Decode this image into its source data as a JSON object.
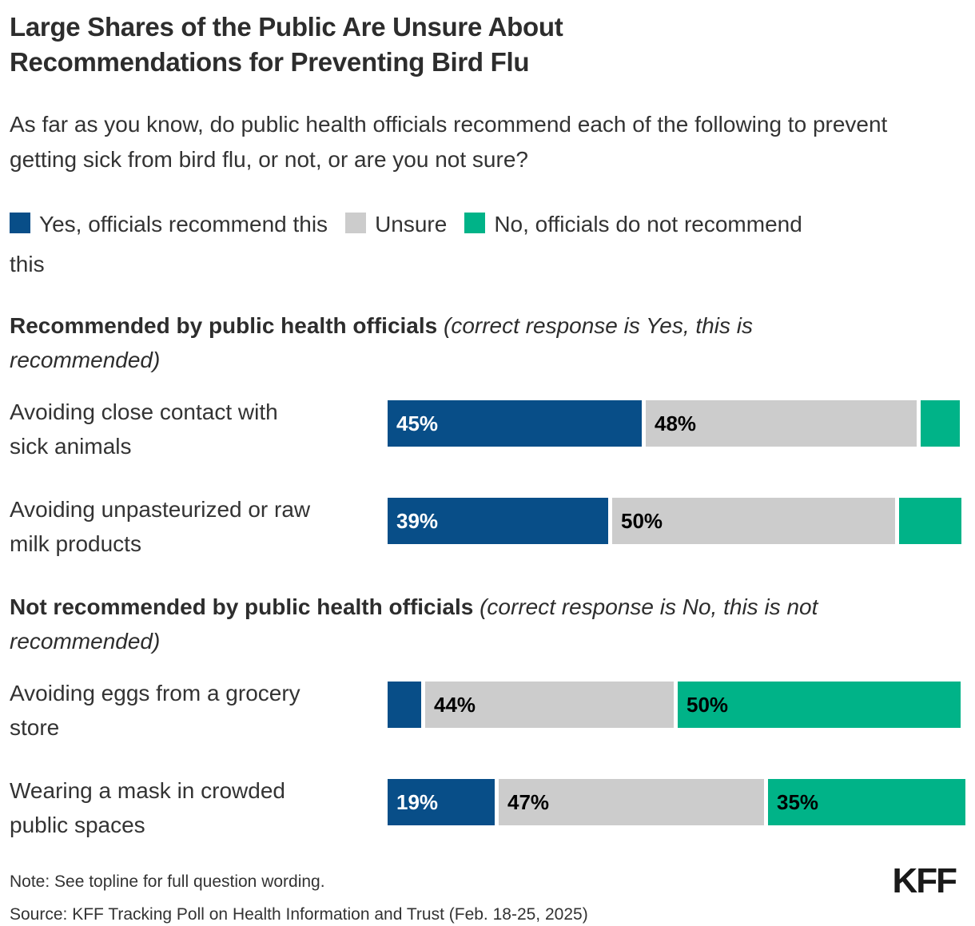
{
  "title": "Large Shares of the Public Are Unsure About Recommendations for Preventing Bird Flu",
  "subtitle": "As far as you know, do public health officials recommend each of the following to prevent getting sick from bird flu, or not, or are you not sure?",
  "colors": {
    "yes": "#084E88",
    "unsure": "#CCCCCC",
    "no": "#00B388",
    "text": "#333333",
    "label_on_dark": "#FFFFFF",
    "label_on_light": "#000000"
  },
  "legend": {
    "items": [
      {
        "key": "yes",
        "label": "Yes, officials recommend this",
        "color": "#084E88",
        "wrap_last_word": false
      },
      {
        "key": "unsure",
        "label": "Unsure",
        "color": "#CCCCCC",
        "wrap_last_word": false
      },
      {
        "key": "no",
        "label": "No, officials do not recommend this",
        "color": "#00B388",
        "wrap_last_word": true
      }
    ]
  },
  "sections": [
    {
      "heading_bold": "Recommended by public health officials ",
      "heading_italic": "(correct response is Yes, this is recommended)",
      "rows": [
        {
          "label": "Avoiding close contact with sick animals",
          "segments": [
            {
              "key": "yes",
              "value": 45,
              "display_label": "45%",
              "show_label": true
            },
            {
              "key": "unsure",
              "value": 48,
              "display_label": "48%",
              "show_label": true
            },
            {
              "key": "no",
              "value": 7,
              "display_label": "",
              "show_label": false
            }
          ]
        },
        {
          "label": "Avoiding unpasteurized or raw milk products",
          "segments": [
            {
              "key": "yes",
              "value": 39,
              "display_label": "39%",
              "show_label": true
            },
            {
              "key": "unsure",
              "value": 50,
              "display_label": "50%",
              "show_label": true
            },
            {
              "key": "no",
              "value": 11,
              "display_label": "",
              "show_label": false
            }
          ]
        }
      ]
    },
    {
      "heading_bold": "Not recommended by public health officials ",
      "heading_italic": "(correct response is No, this is not recommended)",
      "rows": [
        {
          "label": "Avoiding eggs from a grocery store",
          "segments": [
            {
              "key": "yes",
              "value": 6,
              "display_label": "",
              "show_label": false
            },
            {
              "key": "unsure",
              "value": 44,
              "display_label": "44%",
              "show_label": true
            },
            {
              "key": "no",
              "value": 50,
              "display_label": "50%",
              "show_label": true
            }
          ]
        },
        {
          "label": "Wearing a mask in crowded public spaces",
          "segments": [
            {
              "key": "yes",
              "value": 19,
              "display_label": "19%",
              "show_label": true
            },
            {
              "key": "unsure",
              "value": 47,
              "display_label": "47%",
              "show_label": true
            },
            {
              "key": "no",
              "value": 35,
              "display_label": "35%",
              "show_label": true
            }
          ]
        }
      ]
    }
  ],
  "footer": {
    "note": "Note: See topline for full question wording.",
    "source": "Source: KFF Tracking Poll on Health Information and Trust (Feb. 18-25, 2025)",
    "logo": "KFF"
  },
  "chart_data": {
    "type": "bar",
    "subtype": "horizontal-stacked",
    "title": "Large Shares of the Public Are Unsure About Recommendations for Preventing Bird Flu",
    "subtitle": "As far as you know, do public health officials recommend each of the following to prevent getting sick from bird flu, or not, or are you not sure?",
    "legend_position": "top",
    "grid": false,
    "axes_hidden": true,
    "xlim": [
      0,
      100
    ],
    "unit": "%",
    "categories": [
      "Avoiding close contact with sick animals",
      "Avoiding unpasteurized or raw milk products",
      "Avoiding eggs from a grocery store",
      "Wearing a mask in crowded public spaces"
    ],
    "category_groups": [
      "Recommended by public health officials (correct response is Yes, this is recommended)",
      "Recommended by public health officials (correct response is Yes, this is recommended)",
      "Not recommended by public health officials (correct response is No, this is not recommended)",
      "Not recommended by public health officials (correct response is No, this is not recommended)"
    ],
    "series": [
      {
        "name": "Yes, officials recommend this",
        "color": "#084E88",
        "values": [
          45,
          39,
          6,
          19
        ],
        "labels_shown": [
          true,
          true,
          false,
          true
        ]
      },
      {
        "name": "Unsure",
        "color": "#CCCCCC",
        "values": [
          48,
          50,
          44,
          47
        ],
        "labels_shown": [
          true,
          true,
          true,
          true
        ]
      },
      {
        "name": "No, officials do not recommend this",
        "color": "#00B388",
        "values": [
          7,
          11,
          50,
          35
        ],
        "labels_shown": [
          false,
          false,
          true,
          true
        ]
      }
    ]
  }
}
